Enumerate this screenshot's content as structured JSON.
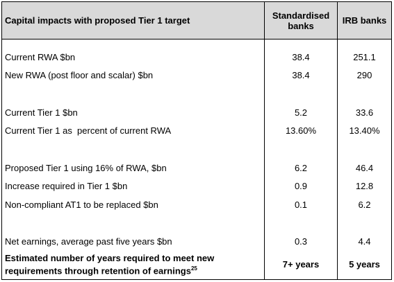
{
  "table": {
    "header": [
      "Capital impacts with proposed Tier 1 target",
      "Standardised banks",
      "IRB banks"
    ],
    "groups": [
      [
        [
          "Current RWA $bn",
          "38.4",
          "251.1"
        ],
        [
          "New RWA (post floor and scalar) $bn",
          "38.4",
          "290"
        ]
      ],
      [
        [
          "Current Tier 1 $bn",
          "5.2",
          "33.6"
        ],
        [
          "Current Tier 1 as  percent of current RWA",
          "13.60%",
          "13.40%"
        ]
      ],
      [
        [
          "Proposed Tier 1 using 16% of RWA, $bn",
          "6.2",
          "46.4"
        ],
        [
          "Increase required in Tier 1 $bn",
          "0.9",
          "12.8"
        ],
        [
          "Non-compliant AT1 to be replaced $bn",
          "0.1",
          "6.2"
        ]
      ],
      [
        [
          "Net earnings, average past five years $bn",
          "0.3",
          "4.4"
        ]
      ]
    ],
    "final_row": {
      "label": "Estimated number of years required to meet new requirements through retention of earnings",
      "footnote": "25",
      "values": [
        "7+ years",
        "5 years"
      ]
    }
  }
}
